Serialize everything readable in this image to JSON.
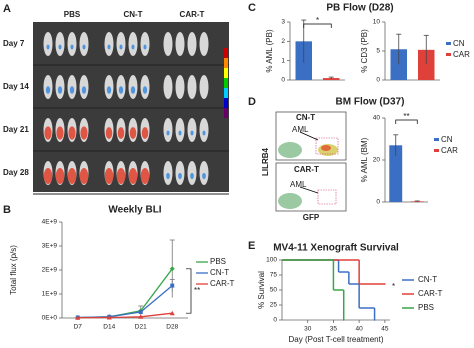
{
  "panels": {
    "A": {
      "letter": "A",
      "columns": [
        "PBS",
        "CN-T",
        "CAR-T"
      ],
      "rows": [
        "Day 7",
        "Day 14",
        "Day 21",
        "Day 28"
      ]
    },
    "B": {
      "letter": "B"
    },
    "C": {
      "letter": "C",
      "title": "PB Flow (D28)"
    },
    "D": {
      "letter": "D",
      "title": "BM Flow (D37)",
      "plots": [
        {
          "label": "CN-T",
          "gate": "AML"
        },
        {
          "label": "CAR-T",
          "gate": "AML"
        }
      ],
      "y_label": "LILRB4",
      "x_label": "GFP"
    },
    "E": {
      "letter": "E"
    }
  },
  "chart_data": [
    {
      "type": "line",
      "title": "Weekly BLI",
      "y_label": "Total flux (p/s)",
      "categories": [
        "D7",
        "D14",
        "D21",
        "D28"
      ],
      "ylim": [
        0,
        4000000000
      ],
      "yticks": [
        {
          "value": 0,
          "label": "0E+0"
        },
        {
          "value": 1000000000,
          "label": "1E+9"
        },
        {
          "value": 2000000000,
          "label": "2E+9"
        },
        {
          "value": 3000000000,
          "label": "3E+9"
        },
        {
          "value": 4000000000,
          "label": "4E+9"
        }
      ],
      "series": [
        {
          "name": "PBS",
          "color": "#3aa64a",
          "marker": "diamond",
          "values": [
            20000000,
            50000000,
            300000000,
            2050000000
          ],
          "errors": [
            null,
            null,
            200000000,
            1200000000
          ]
        },
        {
          "name": "CN-T",
          "color": "#3a6fc4",
          "marker": "square",
          "values": [
            20000000,
            50000000,
            250000000,
            1350000000
          ],
          "errors": [
            null,
            null,
            null,
            250000000
          ]
        },
        {
          "name": "CAR-T",
          "color": "#e0403a",
          "marker": "triangle",
          "values": [
            10000000,
            20000000,
            50000000,
            200000000
          ],
          "errors": [
            null,
            null,
            null,
            null
          ]
        }
      ],
      "annotation": "**"
    },
    {
      "type": "bar",
      "y_label": "% AML (PB)",
      "categories": [
        "CN",
        "CAR"
      ],
      "colors": [
        "#3a6fc4",
        "#e0403a"
      ],
      "values": [
        2.0,
        0.1
      ],
      "errors": [
        1.1,
        0.05
      ],
      "ylim": [
        0,
        3
      ],
      "yticks": [
        0,
        1,
        2,
        3
      ],
      "legend": false,
      "annotation": "*"
    },
    {
      "type": "bar",
      "y_label": "% CD3 (PB)",
      "categories": [
        "CN",
        "CAR"
      ],
      "colors": [
        "#3a6fc4",
        "#e0403a"
      ],
      "values": [
        5.3,
        5.2
      ],
      "errors": [
        2.6,
        2.5
      ],
      "ylim": [
        0,
        10
      ],
      "yticks": [
        0,
        5,
        10
      ],
      "legend": true
    },
    {
      "type": "bar",
      "y_label": "% AML (BM)",
      "categories": [
        "CN",
        "CAR"
      ],
      "colors": [
        "#3a6fc4",
        "#e0403a"
      ],
      "values": [
        27,
        0.3
      ],
      "errors": [
        5,
        0.2
      ],
      "ylim": [
        0,
        40
      ],
      "yticks": [
        0,
        20,
        40
      ],
      "legend": true,
      "annotation": "**"
    },
    {
      "type": "step",
      "title": "MV4-11 Xenograft Survival",
      "x_label": "Day (Post T-cell treatment)",
      "y_label": "% Survival",
      "xlim": [
        25,
        46
      ],
      "xticks": [
        30,
        35,
        40,
        45
      ],
      "ylim": [
        0,
        100
      ],
      "yticks": [
        0,
        25,
        50,
        75,
        100
      ],
      "series": [
        {
          "name": "CN-T",
          "color": "#3a6fc4",
          "x": [
            25,
            36,
            38,
            40,
            43
          ],
          "values": [
            100,
            80,
            60,
            20,
            0
          ]
        },
        {
          "name": "CAR-T",
          "color": "#e0403a",
          "x": [
            25,
            40,
            45
          ],
          "values": [
            100,
            60,
            60
          ]
        },
        {
          "name": "PBS",
          "color": "#3aa64a",
          "x": [
            25,
            35,
            37
          ],
          "values": [
            100,
            50,
            0
          ]
        }
      ],
      "annotation": "*"
    }
  ]
}
